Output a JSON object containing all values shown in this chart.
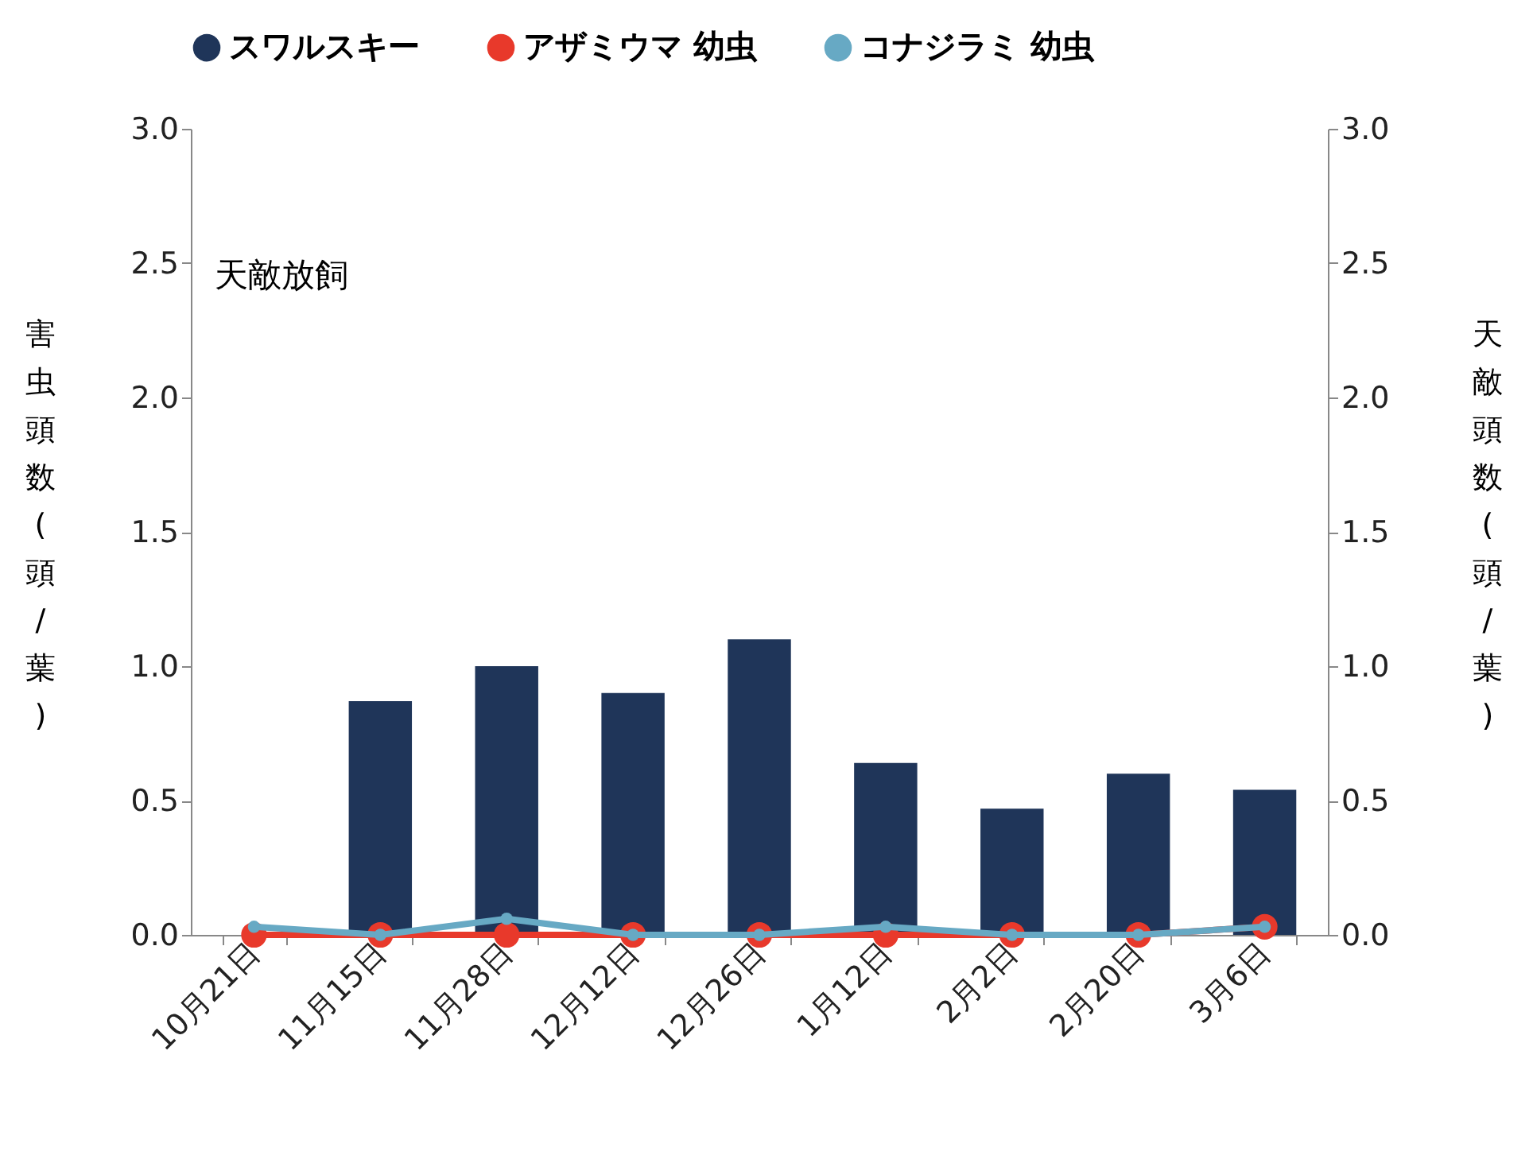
{
  "chart_data": {
    "type": "bar",
    "ylabel": "害虫頭数(頭/葉)",
    "y2label": "天敵頭数(頭/葉)",
    "annotations": [
      "天敵放飼"
    ],
    "categories": [
      "10月21日",
      "11月15日",
      "11月28日",
      "12月12日",
      "12月26日",
      "1月12日",
      "2月2日",
      "2月20日",
      "3月6日"
    ],
    "series": [
      {
        "name": "スワルスキー",
        "color": "#1f3559",
        "values": [
          0,
          0.87,
          1.0,
          0.9,
          1.1,
          0.64,
          0.47,
          0.6,
          0.54
        ]
      },
      {
        "name": "アザミウマ 幼虫",
        "type": "line",
        "axis": "y2",
        "color": "#e8392b",
        "values": [
          0,
          0,
          0,
          0,
          0,
          0,
          0,
          0,
          0.03
        ]
      },
      {
        "name": "コナジラミ 幼虫",
        "type": "line",
        "axis": "y2",
        "color": "#67a9c4",
        "values": [
          0.03,
          0,
          0.06,
          0,
          0,
          0.03,
          0,
          0,
          0.03
        ]
      }
    ],
    "ylim": [
      0,
      3
    ],
    "y2lim": [
      0,
      3
    ],
    "yticks": [
      {
        "value": 0,
        "label": "0.0"
      },
      {
        "value": 0.5,
        "label": "0.5"
      },
      {
        "value": 1,
        "label": "1.0"
      },
      {
        "value": 1.5,
        "label": "1.5"
      },
      {
        "value": 2,
        "label": "2.0"
      },
      {
        "value": 2.5,
        "label": "2.5"
      },
      {
        "value": 3,
        "label": "3.0"
      }
    ],
    "y2ticks": [
      {
        "value": 0,
        "label": "0.0"
      },
      {
        "value": 0.5,
        "label": "0.5"
      },
      {
        "value": 1,
        "label": "1.0"
      },
      {
        "value": 1.5,
        "label": "1.5"
      },
      {
        "value": 2,
        "label": "2.0"
      },
      {
        "value": 2.5,
        "label": "2.5"
      },
      {
        "value": 3,
        "label": "3.0"
      }
    ],
    "grid": false,
    "legend": "top",
    "marker": "circle",
    "line_style": "solid"
  }
}
